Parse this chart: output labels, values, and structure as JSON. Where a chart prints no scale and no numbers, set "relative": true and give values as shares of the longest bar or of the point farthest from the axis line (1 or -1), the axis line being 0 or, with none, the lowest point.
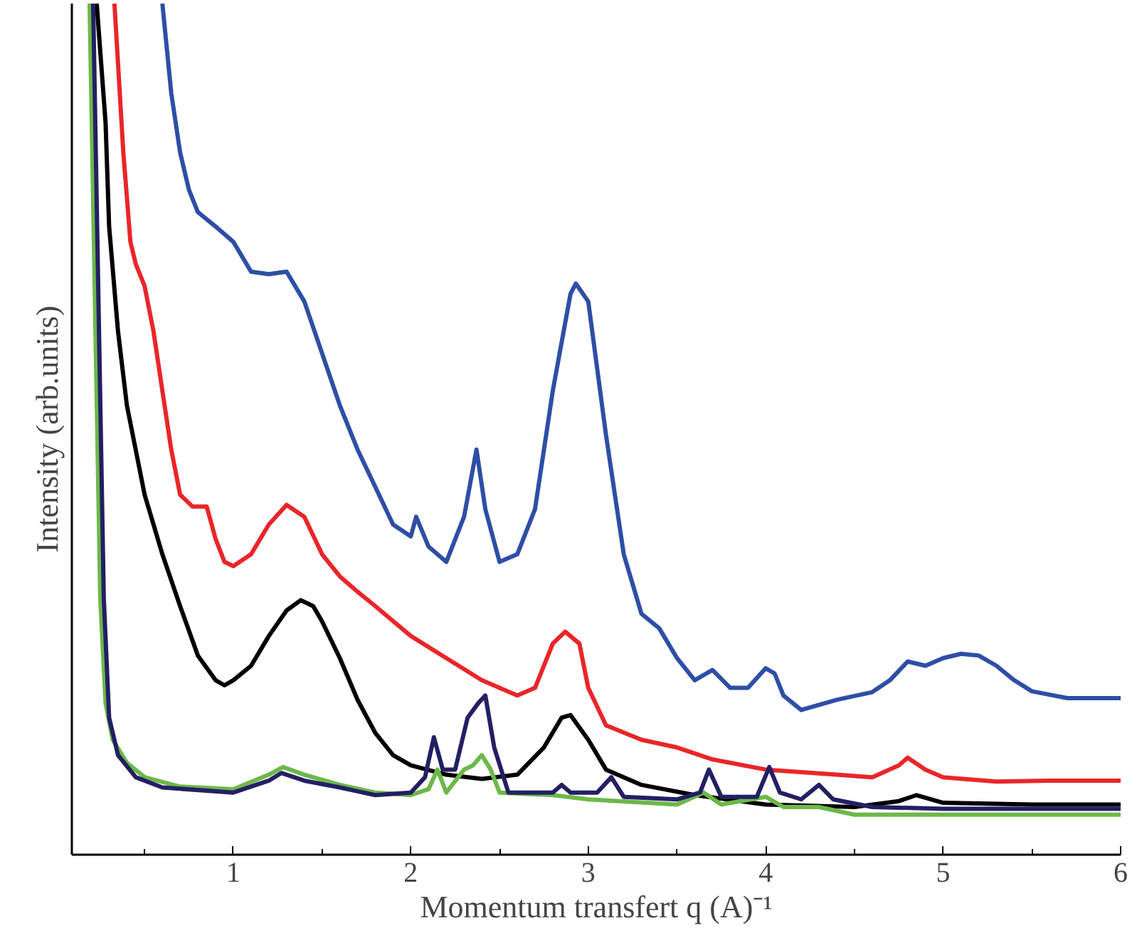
{
  "chart_data": {
    "type": "line",
    "relative": true,
    "xlabel": "Momentum transfert q (A)⁻¹",
    "ylabel": "Intensity (arb.units)",
    "xlim": [
      0.09,
      6
    ],
    "xticks": [
      {
        "value": 0.5,
        "label": null
      },
      1,
      {
        "value": 1.5,
        "label": null
      },
      2,
      {
        "value": 2.5,
        "label": null
      },
      3,
      {
        "value": 3.5,
        "label": null
      },
      4,
      {
        "value": 4.5,
        "label": null
      },
      5,
      {
        "value": 5.5,
        "label": null
      },
      6
    ],
    "grid": false,
    "line_style": "solid",
    "marker": "none",
    "series": [
      {
        "color": "#2e4ea6",
        "x": [
          0.6,
          0.65,
          0.7,
          0.75,
          0.8,
          0.9,
          1.0,
          1.1,
          1.2,
          1.3,
          1.4,
          1.5,
          1.6,
          1.7,
          1.8,
          1.9,
          2.0,
          2.03,
          2.1,
          2.2,
          2.3,
          2.37,
          2.42,
          2.5,
          2.6,
          2.7,
          2.8,
          2.9,
          2.93,
          3.0,
          3.1,
          3.2,
          3.3,
          3.4,
          3.5,
          3.6,
          3.7,
          3.8,
          3.9,
          4.0,
          4.05,
          4.1,
          4.2,
          4.4,
          4.6,
          4.7,
          4.8,
          4.9,
          5.0,
          5.1,
          5.2,
          5.3,
          5.4,
          5.5,
          5.7,
          6.0
        ],
        "values": [
          1,
          0.895,
          0.825,
          0.781,
          0.755,
          0.738,
          0.72,
          0.685,
          0.682,
          0.685,
          0.65,
          0.589,
          0.528,
          0.476,
          0.432,
          0.388,
          0.374,
          0.397,
          0.362,
          0.344,
          0.397,
          0.476,
          0.406,
          0.344,
          0.353,
          0.406,
          0.545,
          0.659,
          0.671,
          0.65,
          0.493,
          0.353,
          0.283,
          0.266,
          0.231,
          0.205,
          0.217,
          0.196,
          0.196,
          0.219,
          0.213,
          0.187,
          0.17,
          0.182,
          0.191,
          0.205,
          0.227,
          0.222,
          0.231,
          0.236,
          0.234,
          0.222,
          0.205,
          0.192,
          0.184,
          0.184
        ]
      },
      {
        "color": "#e8262a",
        "x": [
          0.33,
          0.38,
          0.42,
          0.45,
          0.5,
          0.55,
          0.6,
          0.65,
          0.7,
          0.77,
          0.85,
          0.9,
          0.95,
          1.0,
          1.1,
          1.2,
          1.3,
          1.4,
          1.5,
          1.6,
          1.7,
          1.8,
          2.0,
          2.2,
          2.4,
          2.6,
          2.7,
          2.8,
          2.87,
          2.95,
          3.0,
          3.1,
          3.3,
          3.5,
          3.7,
          4.0,
          4.4,
          4.6,
          4.75,
          4.8,
          4.9,
          5.0,
          5.3,
          5.6,
          6.0
        ],
        "values": [
          1,
          0.825,
          0.72,
          0.694,
          0.668,
          0.615,
          0.545,
          0.476,
          0.423,
          0.409,
          0.409,
          0.371,
          0.344,
          0.339,
          0.353,
          0.388,
          0.411,
          0.397,
          0.353,
          0.327,
          0.309,
          0.292,
          0.257,
          0.231,
          0.205,
          0.187,
          0.196,
          0.248,
          0.262,
          0.248,
          0.196,
          0.152,
          0.135,
          0.126,
          0.112,
          0.1,
          0.094,
          0.091,
          0.105,
          0.114,
          0.1,
          0.091,
          0.086,
          0.087,
          0.087
        ]
      },
      {
        "color": "#000000",
        "x": [
          0.23,
          0.28,
          0.3,
          0.35,
          0.4,
          0.5,
          0.6,
          0.7,
          0.8,
          0.9,
          0.95,
          1.0,
          1.1,
          1.2,
          1.3,
          1.38,
          1.45,
          1.5,
          1.6,
          1.7,
          1.8,
          1.9,
          2.0,
          2.2,
          2.4,
          2.6,
          2.75,
          2.85,
          2.9,
          3.0,
          3.1,
          3.3,
          3.6,
          4.0,
          4.5,
          4.75,
          4.85,
          5.0,
          5.5,
          6.0
        ],
        "values": [
          1,
          0.86,
          0.738,
          0.615,
          0.528,
          0.423,
          0.353,
          0.292,
          0.234,
          0.205,
          0.199,
          0.205,
          0.222,
          0.257,
          0.287,
          0.299,
          0.292,
          0.274,
          0.231,
          0.182,
          0.143,
          0.117,
          0.105,
          0.094,
          0.089,
          0.094,
          0.126,
          0.161,
          0.164,
          0.135,
          0.1,
          0.082,
          0.07,
          0.059,
          0.056,
          0.063,
          0.07,
          0.061,
          0.059,
          0.059
        ]
      },
      {
        "color": "#6cb84a",
        "x": [
          0.19,
          0.22,
          0.25,
          0.28,
          0.32,
          0.4,
          0.5,
          0.7,
          1.0,
          1.2,
          1.28,
          1.4,
          1.6,
          1.8,
          2.0,
          2.1,
          2.15,
          2.2,
          2.3,
          2.35,
          2.4,
          2.45,
          2.5,
          2.8,
          3.0,
          3.5,
          3.65,
          3.75,
          4.0,
          4.1,
          4.3,
          4.5,
          5.0,
          5.5,
          6.0
        ],
        "values": [
          1,
          0.65,
          0.301,
          0.178,
          0.135,
          0.108,
          0.091,
          0.08,
          0.077,
          0.094,
          0.103,
          0.094,
          0.082,
          0.073,
          0.07,
          0.077,
          0.1,
          0.073,
          0.1,
          0.105,
          0.117,
          0.1,
          0.073,
          0.07,
          0.065,
          0.059,
          0.073,
          0.059,
          0.068,
          0.056,
          0.056,
          0.047,
          0.047,
          0.047,
          0.047
        ]
      },
      {
        "color": "#231f63",
        "x": [
          0.21,
          0.24,
          0.27,
          0.3,
          0.35,
          0.45,
          0.6,
          1.0,
          1.2,
          1.27,
          1.4,
          1.6,
          1.8,
          2.0,
          2.08,
          2.13,
          2.18,
          2.25,
          2.32,
          2.38,
          2.42,
          2.47,
          2.55,
          2.8,
          2.85,
          2.9,
          3.05,
          3.13,
          3.2,
          3.5,
          3.63,
          3.68,
          3.75,
          3.95,
          4.02,
          4.08,
          4.2,
          4.3,
          4.38,
          4.6,
          5.0,
          6.0
        ],
        "values": [
          1,
          0.65,
          0.301,
          0.161,
          0.117,
          0.091,
          0.079,
          0.073,
          0.087,
          0.096,
          0.087,
          0.079,
          0.07,
          0.073,
          0.091,
          0.138,
          0.1,
          0.1,
          0.161,
          0.178,
          0.187,
          0.126,
          0.073,
          0.073,
          0.082,
          0.073,
          0.073,
          0.091,
          0.068,
          0.065,
          0.073,
          0.1,
          0.068,
          0.068,
          0.103,
          0.073,
          0.065,
          0.082,
          0.065,
          0.056,
          0.054,
          0.054
        ]
      }
    ]
  }
}
